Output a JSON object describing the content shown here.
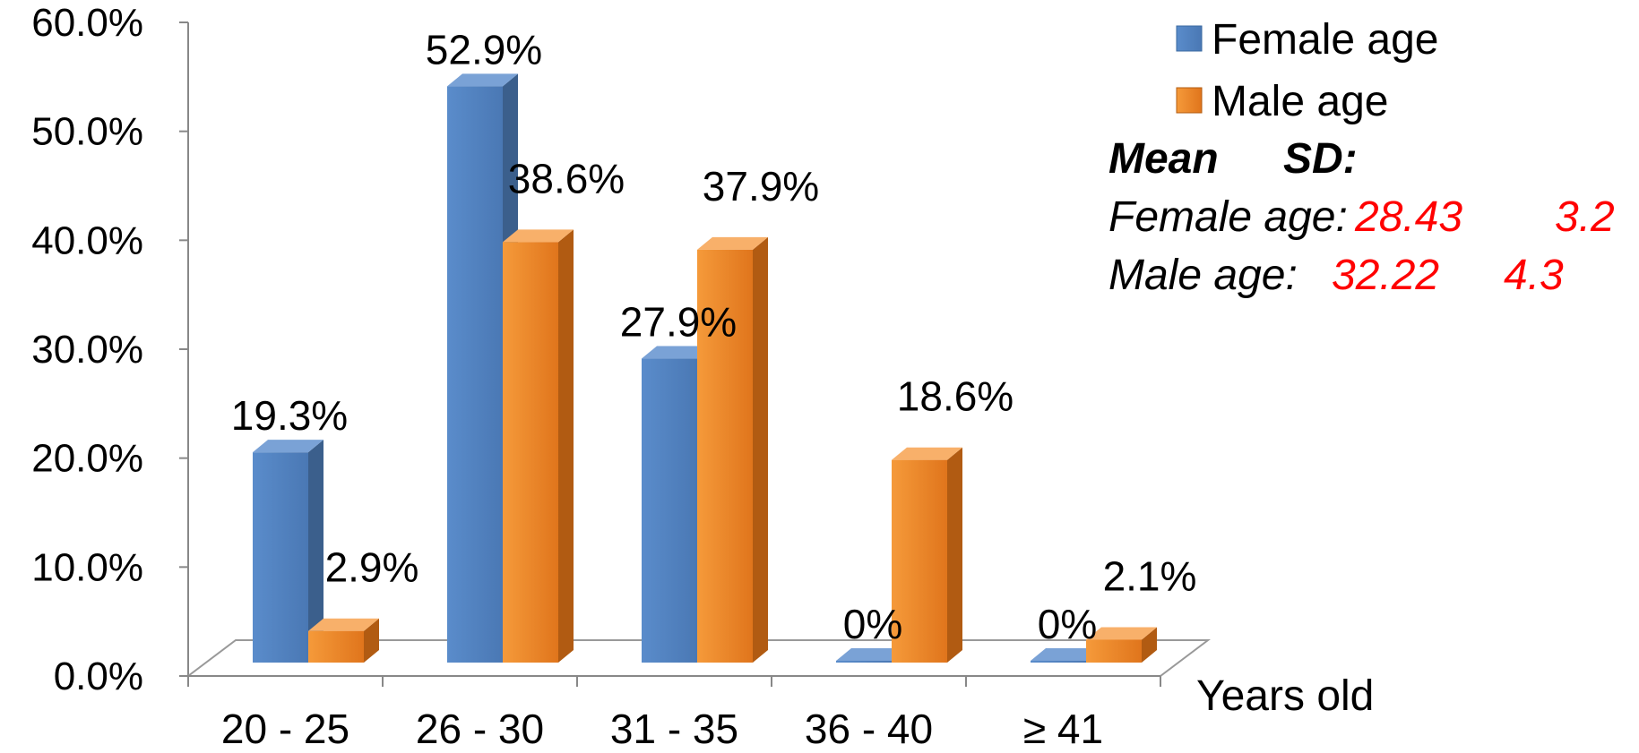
{
  "chart_data": {
    "type": "bar",
    "style": "3d-clustered",
    "categories": [
      "20 - 25",
      "26 - 30",
      "31 - 35",
      "36 - 40",
      "≥ 41"
    ],
    "series": [
      {
        "name": "Female age",
        "color": "#4F81BD",
        "values": [
          19.3,
          52.9,
          27.9,
          0,
          0
        ],
        "labels": [
          "19.3%",
          "52.9%",
          "27.9%",
          "0%",
          "0%"
        ]
      },
      {
        "name": "Male age",
        "color": "#F79646",
        "values": [
          2.9,
          38.6,
          37.9,
          18.6,
          2.1
        ],
        "labels": [
          "2.9%",
          "38.6%",
          "37.9%",
          "18.6%",
          "2.1%"
        ]
      }
    ],
    "ylim": [
      0,
      60
    ],
    "yticks": [
      "0.0%",
      "10.0%",
      "20.0%",
      "30.0%",
      "40.0%",
      "50.0%",
      "60.0%"
    ],
    "xlabel": "Years old",
    "ylabel": "",
    "title": "",
    "legend_position": "top-right",
    "grid": false
  },
  "stats": {
    "header_mean": "Mean",
    "header_sd": "SD:",
    "rows": [
      {
        "label": "Female age:",
        "mean": "28.43",
        "sd": "3.2"
      },
      {
        "label": "Male age:",
        "mean": "32.22",
        "sd": "4.3"
      }
    ]
  }
}
